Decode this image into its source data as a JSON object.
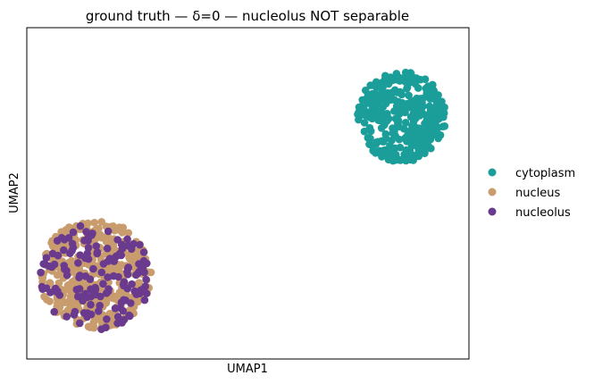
{
  "chart_data": {
    "type": "scatter",
    "title": "ground truth — δ=0 — nucleolus NOT separable",
    "xlabel": "UMAP1",
    "ylabel": "UMAP2",
    "xlim": [
      0,
      100
    ],
    "ylim": [
      0,
      100
    ],
    "grid": false,
    "ticks": false,
    "legend_position": "right",
    "series": [
      {
        "name": "cytoplasm",
        "color": "#1b9e9a",
        "cluster": {
          "cx": 84.8,
          "cy": 73.2,
          "rx": 10.3,
          "ry": 14.3
        },
        "n": 350
      },
      {
        "name": "nucleus",
        "color": "#c99c6e",
        "cluster": {
          "cx": 15.5,
          "cy": 25.5,
          "rx": 13.1,
          "ry": 16.8
        },
        "n": 420
      },
      {
        "name": "nucleolus",
        "color": "#6a3a8e",
        "cluster": {
          "cx": 15.5,
          "cy": 25.0,
          "rx": 13.1,
          "ry": 16.8
        },
        "n": 150
      }
    ]
  }
}
